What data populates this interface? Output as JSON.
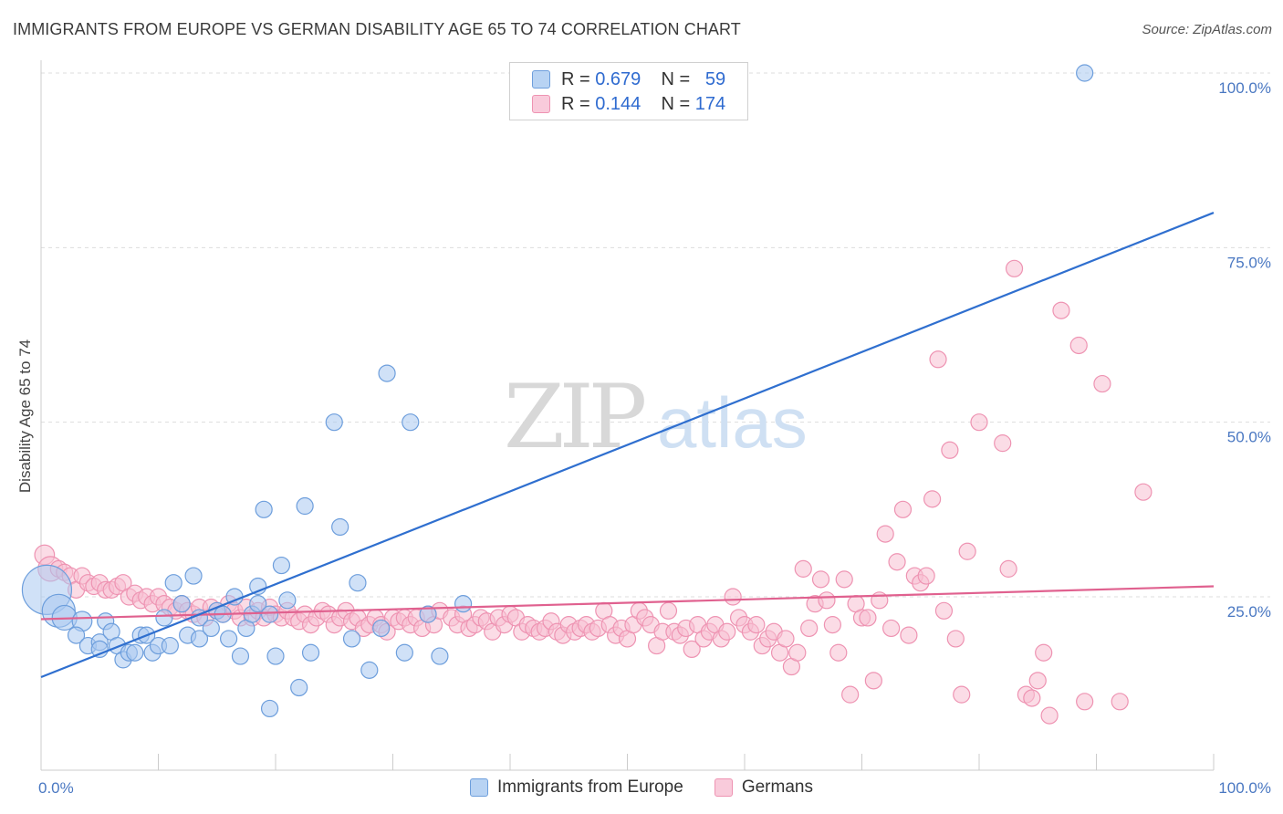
{
  "header": {
    "title": "IMMIGRANTS FROM EUROPE VS GERMAN DISABILITY AGE 65 TO 74 CORRELATION CHART",
    "source": "Source: ZipAtlas.com"
  },
  "legend": {
    "rows": [
      {
        "r_label": "R =",
        "r_value": "0.679",
        "n_label": "N =",
        "n_value": "59"
      },
      {
        "r_label": "R =",
        "r_value": "0.144",
        "n_label": "N =",
        "n_value": "174"
      }
    ]
  },
  "watermark": {
    "zip": "ZIP",
    "atlas": "atlas"
  },
  "colors": {
    "blue_fill": "#a9c8f0",
    "blue_stroke": "#6d9edc",
    "blue_line": "#2f6fcf",
    "pink_fill": "#f7bfd2",
    "pink_stroke": "#ee93b2",
    "pink_line": "#e0618f",
    "grid": "#dddddd",
    "tick_text": "#4a78c2"
  },
  "chart_data": {
    "type": "scatter",
    "title": "IMMIGRANTS FROM EUROPE VS GERMAN DISABILITY AGE 65 TO 74 CORRELATION CHART",
    "xlabel": "",
    "ylabel": "Disability Age 65 to 74",
    "xlim": [
      0,
      100
    ],
    "ylim": [
      0,
      102
    ],
    "x_tick_labels": [
      "0.0%",
      "100.0%"
    ],
    "y_ticks": [
      25,
      50,
      75,
      100
    ],
    "y_tick_labels": [
      "25.0%",
      "50.0%",
      "75.0%",
      "100.0%"
    ],
    "grid": "horizontal dashed",
    "legend_position": "bottom-center",
    "series": [
      {
        "name": "Immigrants from Europe",
        "r": 0.679,
        "n": 59,
        "trend": {
          "x": [
            0,
            100
          ],
          "y": [
            13.5,
            80
          ]
        },
        "points": [
          [
            0.5,
            26,
            3
          ],
          [
            1.5,
            23,
            2
          ],
          [
            2,
            22,
            1.5
          ],
          [
            3.5,
            21.5,
            1.2
          ],
          [
            3,
            19.5,
            1
          ],
          [
            4,
            18,
            1
          ],
          [
            5,
            18.5,
            1
          ],
          [
            5,
            17.5,
            1
          ],
          [
            5.5,
            21.5,
            1
          ],
          [
            6,
            20,
            1
          ],
          [
            6.5,
            18,
            1
          ],
          [
            7,
            16,
            1
          ],
          [
            7.5,
            17,
            1
          ],
          [
            8,
            17,
            1
          ],
          [
            8.5,
            19.5,
            1
          ],
          [
            9,
            19.5,
            1
          ],
          [
            9.5,
            17,
            1
          ],
          [
            10,
            18,
            1
          ],
          [
            10.5,
            22,
            1
          ],
          [
            11,
            18,
            1
          ],
          [
            11.3,
            27,
            1
          ],
          [
            12,
            24,
            1
          ],
          [
            12.5,
            19.5,
            1
          ],
          [
            13,
            28,
            1
          ],
          [
            13.5,
            22,
            1
          ],
          [
            13.5,
            19,
            1
          ],
          [
            14.5,
            20.5,
            1
          ],
          [
            15,
            23,
            1
          ],
          [
            15.5,
            22.5,
            1
          ],
          [
            16,
            19,
            1
          ],
          [
            16.5,
            25,
            1
          ],
          [
            17,
            16.5,
            1
          ],
          [
            17.5,
            20.5,
            1
          ],
          [
            18,
            22.5,
            1
          ],
          [
            18.5,
            26.5,
            1
          ],
          [
            18.5,
            24,
            1
          ],
          [
            19,
            37.5,
            1
          ],
          [
            19.5,
            22.5,
            1
          ],
          [
            19.5,
            9,
            1
          ],
          [
            20,
            16.5,
            1
          ],
          [
            20.5,
            29.5,
            1
          ],
          [
            21,
            24.5,
            1
          ],
          [
            22,
            12,
            1
          ],
          [
            22.5,
            38,
            1
          ],
          [
            23,
            17,
            1
          ],
          [
            25,
            50,
            1
          ],
          [
            25.5,
            35,
            1
          ],
          [
            26.5,
            19,
            1
          ],
          [
            27,
            27,
            1
          ],
          [
            28,
            14.5,
            1
          ],
          [
            29,
            20.5,
            1
          ],
          [
            29.5,
            57,
            1
          ],
          [
            31,
            17,
            1
          ],
          [
            31.5,
            50,
            1
          ],
          [
            33,
            22.5,
            1
          ],
          [
            34,
            16.5,
            1
          ],
          [
            36,
            24,
            1
          ],
          [
            89,
            100,
            1
          ]
        ]
      },
      {
        "name": "Germans",
        "r": 0.144,
        "n": 174,
        "trend": {
          "x": [
            0,
            100
          ],
          "y": [
            21.8,
            26.5
          ]
        },
        "points": [
          [
            0.3,
            31,
            1.2
          ],
          [
            0.8,
            29,
            1.5
          ],
          [
            1.5,
            29,
            1
          ],
          [
            2,
            28.5,
            1
          ],
          [
            2.5,
            28,
            1
          ],
          [
            3,
            26,
            1
          ],
          [
            3.5,
            28,
            1
          ],
          [
            4,
            27,
            1
          ],
          [
            4.5,
            26.5,
            1
          ],
          [
            5,
            27,
            1
          ],
          [
            5.5,
            26,
            1
          ],
          [
            6,
            26,
            1
          ],
          [
            6.5,
            26.5,
            1
          ],
          [
            7,
            27,
            1
          ],
          [
            7.5,
            25,
            1
          ],
          [
            8,
            25.5,
            1
          ],
          [
            8.5,
            24.5,
            1
          ],
          [
            9,
            25,
            1
          ],
          [
            9.5,
            24,
            1
          ],
          [
            10,
            25,
            1
          ],
          [
            10.5,
            24,
            1
          ],
          [
            11,
            23.5,
            1
          ],
          [
            11.5,
            23,
            1
          ],
          [
            12,
            24,
            1
          ],
          [
            12.5,
            23,
            1
          ],
          [
            13,
            22.5,
            1
          ],
          [
            13.5,
            23.5,
            1
          ],
          [
            14,
            22,
            1
          ],
          [
            14.5,
            23.5,
            1
          ],
          [
            15,
            23,
            1
          ],
          [
            15.5,
            22.5,
            1
          ],
          [
            16,
            24,
            1
          ],
          [
            16.5,
            23,
            1
          ],
          [
            17,
            22,
            1
          ],
          [
            17.5,
            23.5,
            1
          ],
          [
            18,
            22,
            1
          ],
          [
            18.5,
            23,
            1
          ],
          [
            19,
            22,
            1
          ],
          [
            19.5,
            23.5,
            1
          ],
          [
            20,
            22.5,
            1
          ],
          [
            20.5,
            22,
            1
          ],
          [
            21,
            23,
            1
          ],
          [
            21.5,
            22,
            1
          ],
          [
            22,
            21.5,
            1
          ],
          [
            22.5,
            22.5,
            1
          ],
          [
            23,
            21,
            1
          ],
          [
            23.5,
            22,
            1
          ],
          [
            24,
            23,
            1
          ],
          [
            24.5,
            22.5,
            1
          ],
          [
            25,
            21,
            1
          ],
          [
            25.5,
            22,
            1
          ],
          [
            26,
            23,
            1
          ],
          [
            26.5,
            21.5,
            1
          ],
          [
            27,
            22,
            1
          ],
          [
            27.5,
            20.5,
            1
          ],
          [
            28,
            21,
            1
          ],
          [
            28.5,
            22,
            1
          ],
          [
            29,
            21,
            1
          ],
          [
            29.5,
            20,
            1
          ],
          [
            30,
            22,
            1
          ],
          [
            30.5,
            21.5,
            1
          ],
          [
            31,
            22,
            1
          ],
          [
            31.5,
            21,
            1
          ],
          [
            32,
            22,
            1
          ],
          [
            32.5,
            20.5,
            1
          ],
          [
            33,
            22.5,
            1
          ],
          [
            33.5,
            21,
            1
          ],
          [
            34,
            23,
            1
          ],
          [
            35,
            22,
            1
          ],
          [
            35.5,
            21,
            1
          ],
          [
            36,
            22.5,
            1
          ],
          [
            36.5,
            20.5,
            1
          ],
          [
            37,
            21,
            1
          ],
          [
            37.5,
            22,
            1
          ],
          [
            38,
            21.5,
            1
          ],
          [
            38.5,
            20,
            1
          ],
          [
            39,
            22,
            1
          ],
          [
            39.5,
            21,
            1
          ],
          [
            40,
            22.5,
            1
          ],
          [
            40.5,
            22,
            1
          ],
          [
            41,
            20,
            1
          ],
          [
            41.5,
            21,
            1
          ],
          [
            42,
            20.5,
            1
          ],
          [
            42.5,
            20,
            1
          ],
          [
            43,
            20.5,
            1
          ],
          [
            43.5,
            21.5,
            1
          ],
          [
            44,
            20,
            1
          ],
          [
            44.5,
            19.5,
            1
          ],
          [
            45,
            21,
            1
          ],
          [
            45.5,
            20,
            1
          ],
          [
            46,
            20.5,
            1
          ],
          [
            46.5,
            21,
            1
          ],
          [
            47,
            20,
            1
          ],
          [
            47.5,
            20.5,
            1
          ],
          [
            48,
            23,
            1
          ],
          [
            48.5,
            21,
            1
          ],
          [
            49,
            19.5,
            1
          ],
          [
            49.5,
            20.5,
            1
          ],
          [
            50,
            19,
            1
          ],
          [
            50.5,
            21,
            1
          ],
          [
            51,
            23,
            1
          ],
          [
            51.5,
            22,
            1
          ],
          [
            52,
            21,
            1
          ],
          [
            52.5,
            18,
            1
          ],
          [
            53,
            20,
            1
          ],
          [
            53.5,
            23,
            1
          ],
          [
            54,
            20,
            1
          ],
          [
            54.5,
            19.5,
            1
          ],
          [
            55,
            20.5,
            1
          ],
          [
            55.5,
            17.5,
            1
          ],
          [
            56,
            21,
            1
          ],
          [
            56.5,
            19,
            1
          ],
          [
            57,
            20,
            1
          ],
          [
            57.5,
            21,
            1
          ],
          [
            58,
            19,
            1
          ],
          [
            58.5,
            20,
            1
          ],
          [
            59,
            25,
            1
          ],
          [
            59.5,
            22,
            1
          ],
          [
            60,
            21,
            1
          ],
          [
            60.5,
            20,
            1
          ],
          [
            61,
            21,
            1
          ],
          [
            61.5,
            18,
            1
          ],
          [
            62,
            19,
            1
          ],
          [
            62.5,
            20,
            1
          ],
          [
            63,
            17,
            1
          ],
          [
            63.5,
            19,
            1
          ],
          [
            64,
            15,
            1
          ],
          [
            64.5,
            17,
            1
          ],
          [
            65,
            29,
            1
          ],
          [
            65.5,
            20.5,
            1
          ],
          [
            66,
            24,
            1
          ],
          [
            66.5,
            27.5,
            1
          ],
          [
            67,
            24.5,
            1
          ],
          [
            67.5,
            21,
            1
          ],
          [
            68,
            17,
            1
          ],
          [
            68.5,
            27.5,
            1
          ],
          [
            69,
            11,
            1
          ],
          [
            69.5,
            24,
            1
          ],
          [
            70,
            22,
            1
          ],
          [
            70.5,
            22,
            1
          ],
          [
            71,
            13,
            1
          ],
          [
            71.5,
            24.5,
            1
          ],
          [
            72,
            34,
            1
          ],
          [
            72.5,
            20.5,
            1
          ],
          [
            73,
            30,
            1
          ],
          [
            73.5,
            37.5,
            1
          ],
          [
            74,
            19.5,
            1
          ],
          [
            74.5,
            28,
            1
          ],
          [
            75,
            27,
            1
          ],
          [
            75.5,
            28,
            1
          ],
          [
            76,
            39,
            1
          ],
          [
            76.5,
            59,
            1
          ],
          [
            77,
            23,
            1
          ],
          [
            77.5,
            46,
            1
          ],
          [
            78,
            19,
            1
          ],
          [
            78.5,
            11,
            1
          ],
          [
            79,
            31.5,
            1
          ],
          [
            80,
            50,
            1
          ],
          [
            82,
            47,
            1
          ],
          [
            82.5,
            29,
            1
          ],
          [
            83,
            72,
            1
          ],
          [
            84,
            11,
            1
          ],
          [
            84.5,
            10.5,
            1
          ],
          [
            85,
            13,
            1
          ],
          [
            85.5,
            17,
            1
          ],
          [
            86,
            8,
            1
          ],
          [
            87,
            66,
            1
          ],
          [
            88.5,
            61,
            1
          ],
          [
            89,
            10,
            1
          ],
          [
            90.5,
            55.5,
            1
          ],
          [
            92,
            10,
            1
          ],
          [
            94,
            40,
            1
          ]
        ]
      }
    ]
  },
  "bottom_legend": {
    "items": [
      {
        "label": "Immigrants from Europe"
      },
      {
        "label": "Germans"
      }
    ]
  }
}
